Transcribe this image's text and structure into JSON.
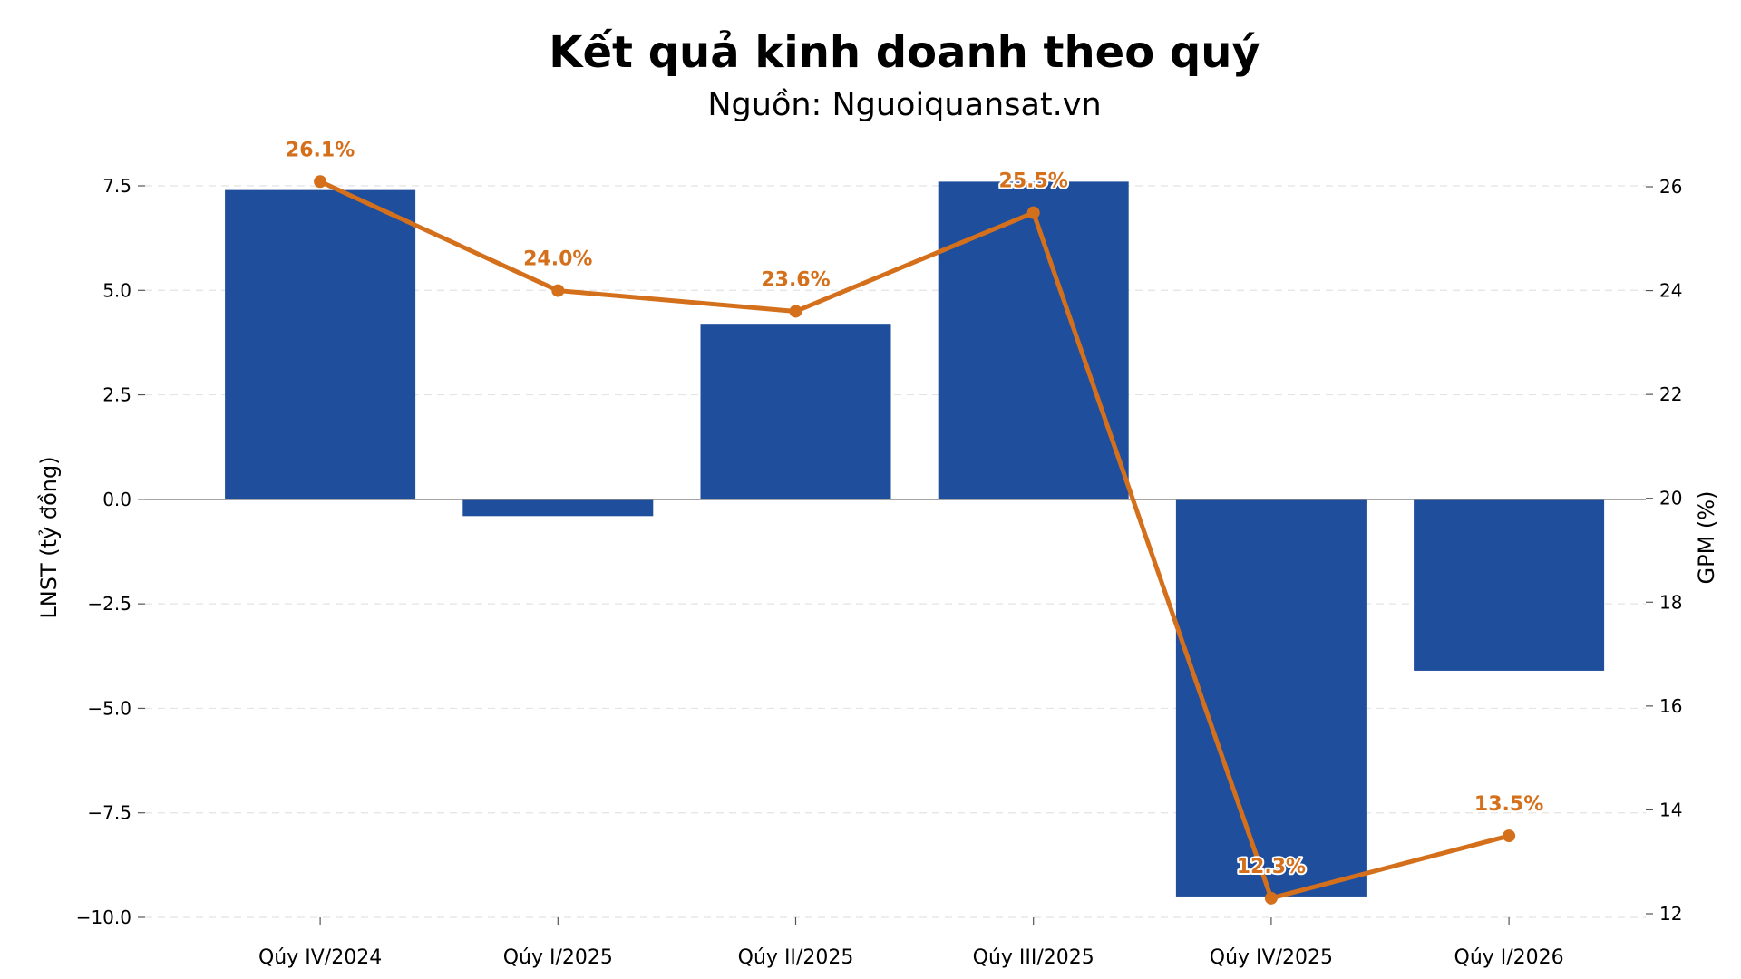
{
  "chart_data": {
    "type": "bar+line",
    "title": "Kết quả kinh doanh theo quý",
    "subtitle": "Nguồn: Nguoiquansat.vn",
    "categories": [
      "Qúy IV/2024",
      "Qúy I/2025",
      "Qúy II/2025",
      "Qúy III/2025",
      "Qúy IV/2025",
      "Qúy I/2026"
    ],
    "bar_series": {
      "axis": "left",
      "values": [
        7.4,
        -0.4,
        4.2,
        7.6,
        -9.5,
        -4.1
      ],
      "color": "#1f4e9c"
    },
    "line_series": {
      "axis": "right",
      "values": [
        26.1,
        24.0,
        23.6,
        25.5,
        12.3,
        13.5
      ],
      "labels": [
        "26.1%",
        "24.0%",
        "23.6%",
        "25.5%",
        "12.3%",
        "13.5%"
      ],
      "color": "#d4701b"
    },
    "left_axis": {
      "label": "LNST (tỷ đồng)",
      "range": [
        -10.0,
        7.5
      ],
      "ticks": [
        -10.0,
        -7.5,
        -5.0,
        -2.5,
        0.0,
        2.5,
        5.0,
        7.5
      ],
      "tick_labels": [
        "−10.0",
        "−7.5",
        "−5.0",
        "−2.5",
        "0.0",
        "2.5",
        "5.0",
        "7.5"
      ]
    },
    "right_axis": {
      "label": "GPM (%)",
      "range": [
        12,
        26
      ],
      "ticks": [
        12,
        14,
        16,
        18,
        20,
        22,
        24,
        26
      ],
      "tick_labels": [
        "12",
        "14",
        "16",
        "18",
        "20",
        "22",
        "24",
        "26"
      ]
    },
    "grid": "horizontal-dashed",
    "zero_line_color": "#888888"
  }
}
